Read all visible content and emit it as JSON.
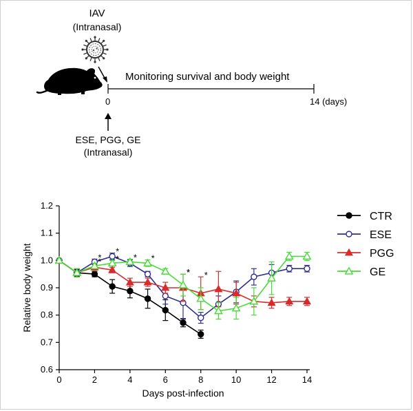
{
  "schematic": {
    "virus_label": "IAV",
    "virus_route": "(Intranasal)",
    "monitor_text": "Monitoring survival and body weight",
    "start_label": "0",
    "end_label": "14 (days)",
    "treatment_label": "ESE, PGG, GE",
    "treatment_route": "(Intranasal)",
    "icons": [
      "mouse-icon",
      "virus-icon",
      "arrow-icon"
    ]
  },
  "chart_data": {
    "type": "line",
    "xlabel": "Days post-infection",
    "ylabel": "Relative body weight",
    "xlim": [
      0,
      14
    ],
    "ylim": [
      0.6,
      1.2
    ],
    "xticks": [
      "0",
      "2",
      "4",
      "6",
      "8",
      "10",
      "12",
      "14"
    ],
    "yticks": [
      "0.6",
      "0.7",
      "0.8",
      "0.9",
      "1.0",
      "1.1",
      "1.2"
    ],
    "grid": false,
    "legend": "right",
    "significance_mark": "*",
    "series": [
      {
        "name": "CTR",
        "color": "#000000",
        "marker": "circle-filled",
        "x": [
          0,
          1,
          2,
          3,
          4,
          5,
          6,
          7,
          8
        ],
        "y": [
          1.0,
          0.955,
          0.95,
          0.905,
          0.888,
          0.86,
          0.818,
          0.772,
          0.73
        ],
        "err": [
          0.005,
          0.012,
          0.01,
          0.025,
          0.025,
          0.035,
          0.038,
          0.015,
          0.015
        ],
        "sig": []
      },
      {
        "name": "ESE",
        "color": "#2e2e8f",
        "marker": "circle-open",
        "x": [
          0,
          1,
          2,
          3,
          4,
          5,
          6,
          7,
          8,
          9,
          10,
          11,
          12,
          13,
          14
        ],
        "y": [
          1.0,
          0.955,
          0.995,
          1.015,
          0.99,
          0.95,
          0.87,
          0.845,
          0.79,
          0.84,
          0.885,
          0.94,
          0.955,
          0.97,
          0.97
        ],
        "err": [
          0.005,
          0.015,
          0.01,
          0.012,
          0.012,
          0.01,
          0.03,
          0.06,
          0.02,
          0.03,
          0.04,
          0.03,
          0.03,
          0.012,
          0.012
        ],
        "sig": [
          2,
          3
        ]
      },
      {
        "name": "PGG",
        "color": "#d82b2b",
        "marker": "triangle-filled",
        "x": [
          0,
          1,
          2,
          3,
          4,
          5,
          6,
          7,
          8,
          9,
          10,
          11,
          12,
          13,
          14
        ],
        "y": [
          1.0,
          0.955,
          0.975,
          0.965,
          0.92,
          0.92,
          0.9,
          0.9,
          0.88,
          0.895,
          0.88,
          0.85,
          0.845,
          0.85,
          0.85
        ],
        "err": [
          0.005,
          0.015,
          0.01,
          0.01,
          0.015,
          0.015,
          0.02,
          0.05,
          0.06,
          0.065,
          0.04,
          0.02,
          0.02,
          0.015,
          0.015
        ],
        "sig": [
          7,
          8
        ]
      },
      {
        "name": "GE",
        "color": "#44dd33",
        "marker": "triangle-open",
        "x": [
          0,
          1,
          2,
          3,
          4,
          5,
          6,
          7,
          8,
          9,
          10,
          11,
          12,
          13,
          14
        ],
        "y": [
          1.0,
          0.955,
          0.98,
          0.99,
          0.995,
          0.99,
          0.96,
          0.91,
          0.86,
          0.815,
          0.825,
          0.85,
          0.935,
          1.015,
          1.015
        ],
        "err": [
          0.005,
          0.015,
          0.01,
          0.01,
          0.01,
          0.012,
          0.01,
          0.04,
          0.04,
          0.03,
          0.04,
          0.05,
          0.06,
          0.015,
          0.015
        ],
        "sig": [
          2,
          3,
          4,
          5,
          7
        ]
      }
    ]
  }
}
